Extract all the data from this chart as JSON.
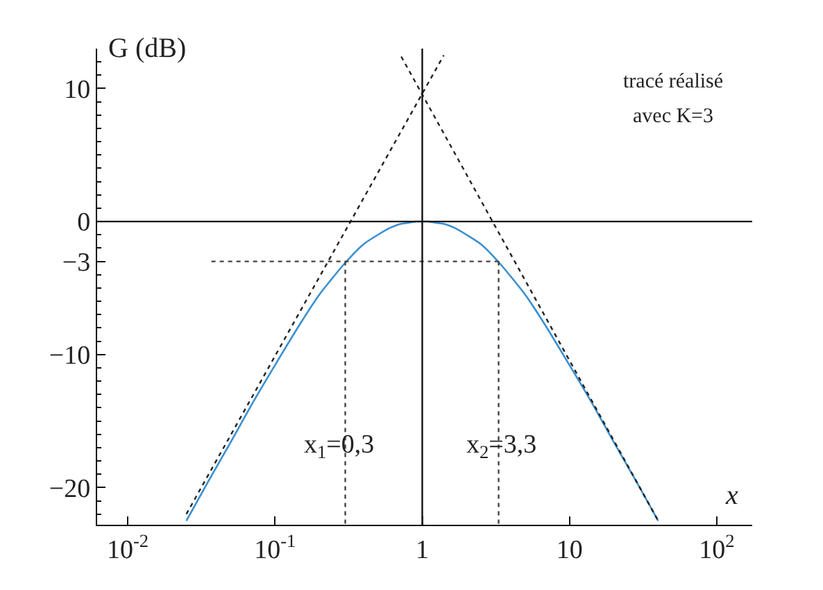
{
  "chart_data": {
    "type": "line",
    "ylabel": "G (dB)",
    "xlabel": "x",
    "log": "x",
    "grid": false,
    "marker": "none",
    "xlim": [
      0.0062,
      174
    ],
    "ylim": [
      -22.8,
      13
    ],
    "xticks": [
      {
        "value": 0.01,
        "label": "10$^{-2}$"
      },
      {
        "value": 0.1,
        "label": "10$^{-1}$"
      },
      1,
      10,
      {
        "value": 100,
        "label": "10$^{2}$"
      }
    ],
    "yticks": [
      10,
      0,
      {
        "value": -3,
        "label": "−3"
      },
      {
        "value": -10,
        "label": "−10"
      },
      {
        "value": -20,
        "label": "−20"
      }
    ],
    "series": [
      {
        "color": "#3a8fd0",
        "line_style": "solid",
        "x": [
          0.025,
          0.035,
          0.05,
          0.07,
          0.1,
          0.15,
          0.2,
          0.3,
          0.4,
          0.5,
          0.6,
          0.7,
          0.8,
          0.9,
          1,
          1.11,
          1.25,
          1.43,
          1.67,
          2,
          2.5,
          3.33,
          5,
          6.67,
          10,
          14.3,
          20,
          28.6,
          40
        ],
        "values": [
          -22.5,
          -19.6,
          -16.6,
          -13.7,
          -10.8,
          -7.6,
          -5.5,
          -3.1,
          -1.7,
          -1,
          -0.5,
          -0.2,
          -0.1,
          0,
          0,
          0,
          -0.1,
          -0.2,
          -0.5,
          -1,
          -1.7,
          -3.1,
          -5.5,
          -7.6,
          -10.8,
          -13.7,
          -16.6,
          -19.6,
          -22.5
        ]
      },
      {
        "color": "#222222",
        "line_style": "dotted",
        "x": [
          0.025,
          1.4
        ],
        "values": [
          -22,
          12.5
        ]
      },
      {
        "color": "#222222",
        "line_style": "dotted",
        "x": [
          0.72,
          40
        ],
        "values": [
          12.4,
          -22.5
        ]
      },
      {
        "color": "#444444",
        "line_style": "dotted",
        "x": [
          0.037,
          3.3
        ],
        "values": [
          -3,
          -3
        ]
      },
      {
        "color": "#444444",
        "line_style": "dotted",
        "x": [
          0.3,
          0.3
        ],
        "values": [
          -3,
          -22.8
        ]
      },
      {
        "color": "#444444",
        "line_style": "dotted",
        "x": [
          3.3,
          3.3
        ],
        "values": [
          -3,
          -22.8
        ]
      }
    ],
    "ref_lines": [
      {
        "axis": "x",
        "value": 1
      },
      {
        "axis": "y",
        "value": 0
      }
    ],
    "annotations": [
      "x$_{1}$=0,3",
      "x$_{2}$=3,3",
      "tracé réalisé",
      "avec K=3"
    ]
  }
}
